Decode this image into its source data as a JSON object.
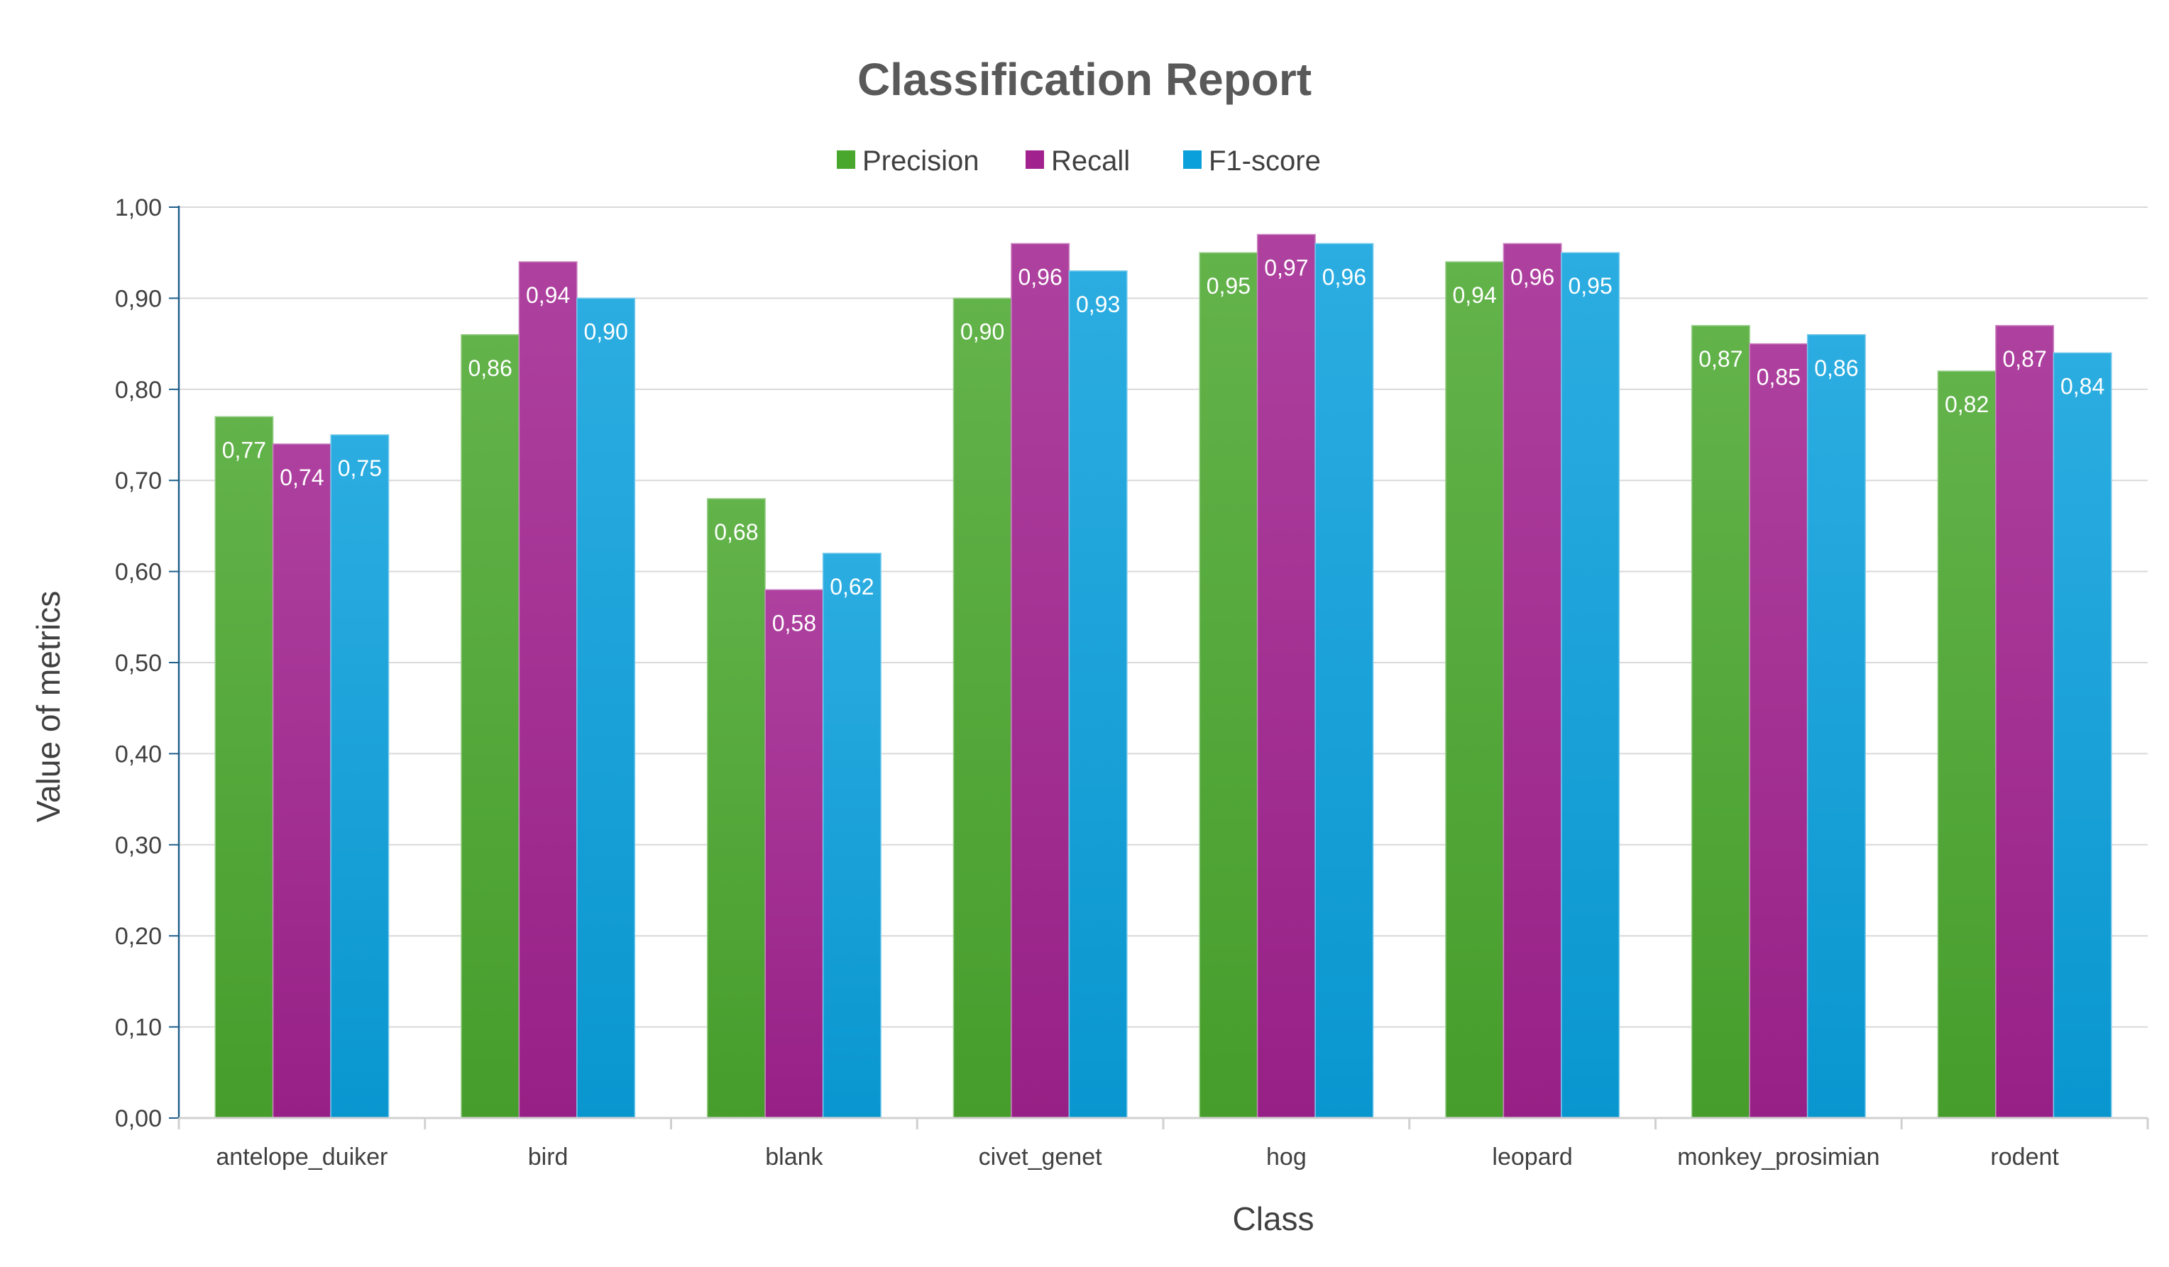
{
  "chart_data": {
    "type": "bar",
    "title": "Classification Report",
    "xlabel": "Class",
    "ylabel": "Value of metrics",
    "ylim": [
      0,
      1
    ],
    "ytick_step": 0.1,
    "ytick_labels": [
      "0,00",
      "0,10",
      "0,20",
      "0,30",
      "0,40",
      "0,50",
      "0,60",
      "0,70",
      "0,80",
      "0,90",
      "1,00"
    ],
    "grid": true,
    "legend_position": "top",
    "categories": [
      "antelope_duiker",
      "bird",
      "blank",
      "civet_genet",
      "hog",
      "leopard",
      "monkey_prosimian",
      "rodent"
    ],
    "series": [
      {
        "name": "Precision",
        "color": "#4aa72e",
        "values": [
          0.77,
          0.86,
          0.68,
          0.9,
          0.95,
          0.94,
          0.87,
          0.82
        ],
        "labels": [
          "0,77",
          "0,86",
          "0,68",
          "0,90",
          "0,95",
          "0,94",
          "0,87",
          "0,82"
        ]
      },
      {
        "name": "Recall",
        "color": "#a1228f",
        "values": [
          0.74,
          0.94,
          0.58,
          0.96,
          0.97,
          0.96,
          0.85,
          0.87
        ],
        "labels": [
          "0,74",
          "0,94",
          "0,58",
          "0,96",
          "0,97",
          "0,96",
          "0,85",
          "0,87"
        ]
      },
      {
        "name": "F1-score",
        "color": "#0aa0dc",
        "values": [
          0.75,
          0.9,
          0.62,
          0.93,
          0.96,
          0.95,
          0.86,
          0.84
        ],
        "labels": [
          "0,75",
          "0,90",
          "0,62",
          "0,93",
          "0,96",
          "0,95",
          "0,86",
          "0,84"
        ]
      }
    ]
  }
}
